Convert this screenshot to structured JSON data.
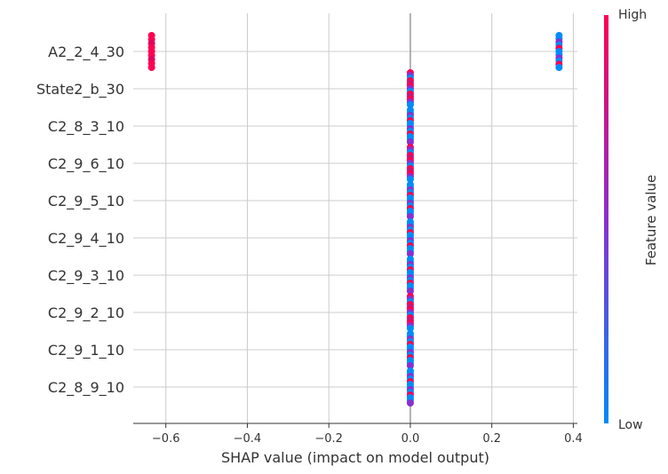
{
  "chart_data": {
    "type": "scatter",
    "subtype": "shap-beeswarm",
    "title": "",
    "xlabel": "SHAP value (impact on model output)",
    "xlim": [
      -0.68,
      0.41
    ],
    "x_ticks": [
      -0.6,
      -0.4,
      -0.2,
      0.0,
      0.2,
      0.4
    ],
    "x_tick_labels": [
      "−0.6",
      "−0.4",
      "−0.2",
      "0.0",
      "0.2",
      "0.4"
    ],
    "features": [
      {
        "name": "A2_2_4_30",
        "clusters": [
          {
            "x": -0.635,
            "count": 9,
            "mix": "high"
          },
          {
            "x": 0.365,
            "count": 11,
            "mix": "mixed-low"
          }
        ]
      },
      {
        "name": "State2_b_30",
        "clusters": [
          {
            "x": 0.0,
            "count": 13,
            "mix": "mixed-high"
          }
        ]
      },
      {
        "name": "C2_8_3_10",
        "clusters": [
          {
            "x": 0.0,
            "count": 13,
            "mix": "mixed-low"
          }
        ]
      },
      {
        "name": "C2_9_6_10",
        "clusters": [
          {
            "x": 0.0,
            "count": 13,
            "mix": "mixed-high"
          }
        ]
      },
      {
        "name": "C2_9_5_10",
        "clusters": [
          {
            "x": 0.0,
            "count": 13,
            "mix": "mixed-low"
          }
        ]
      },
      {
        "name": "C2_9_4_10",
        "clusters": [
          {
            "x": 0.0,
            "count": 13,
            "mix": "mixed-low"
          }
        ]
      },
      {
        "name": "C2_9_3_10",
        "clusters": [
          {
            "x": 0.0,
            "count": 13,
            "mix": "mixed-low"
          }
        ]
      },
      {
        "name": "C2_9_2_10",
        "clusters": [
          {
            "x": 0.0,
            "count": 13,
            "mix": "mixed-high"
          }
        ]
      },
      {
        "name": "C2_9_1_10",
        "clusters": [
          {
            "x": 0.0,
            "count": 13,
            "mix": "mixed-low"
          }
        ]
      },
      {
        "name": "C2_8_9_10",
        "clusters": [
          {
            "x": 0.0,
            "count": 13,
            "mix": "mixed-low"
          }
        ]
      }
    ],
    "colorbar": {
      "label": "Feature value",
      "high_label": "High",
      "low_label": "Low",
      "low_color": "#008bfb",
      "high_color": "#ff0052"
    },
    "colors": {
      "low": "#008bfb",
      "mid": "#8a2fd0",
      "high": "#ff0052",
      "grid": "#cccccc",
      "zero_line": "#999999",
      "axis": "#333333"
    }
  }
}
